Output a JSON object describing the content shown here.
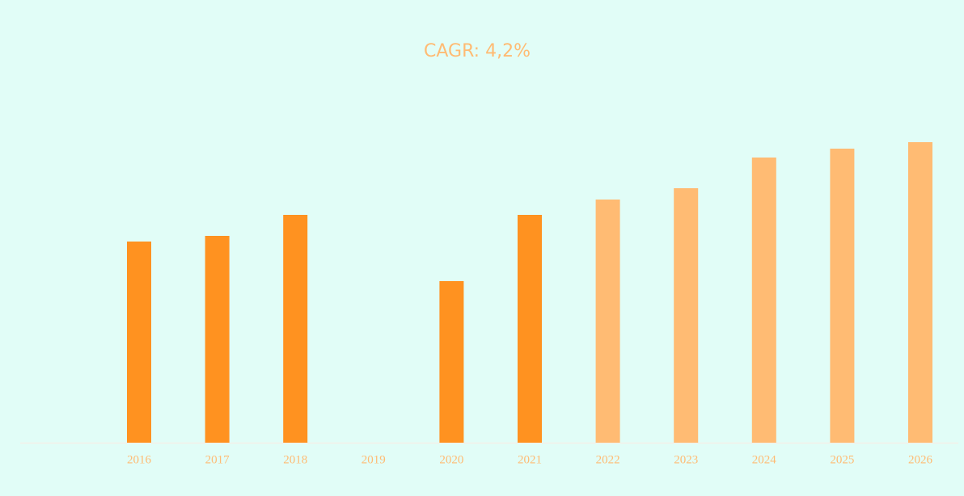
{
  "chart_data": {
    "type": "bar",
    "title": "CAGR: 4,2%",
    "categories": [
      "2016",
      "2017",
      "2018",
      "2019",
      "2020",
      "2021",
      "2022",
      "2023",
      "2024",
      "2025",
      "2026"
    ],
    "values": [
      249,
      256,
      282,
      null,
      200,
      282,
      301,
      315,
      353,
      364,
      372
    ],
    "colors": [
      "#ff9220",
      "#ff9220",
      "#ff9220",
      "#ff9220",
      "#ff9220",
      "#ff9220",
      "#ffbb73",
      "#ffbb73",
      "#ffbb73",
      "#ffbb73",
      "#ffbb73"
    ],
    "ylim": [
      0,
      400
    ]
  }
}
